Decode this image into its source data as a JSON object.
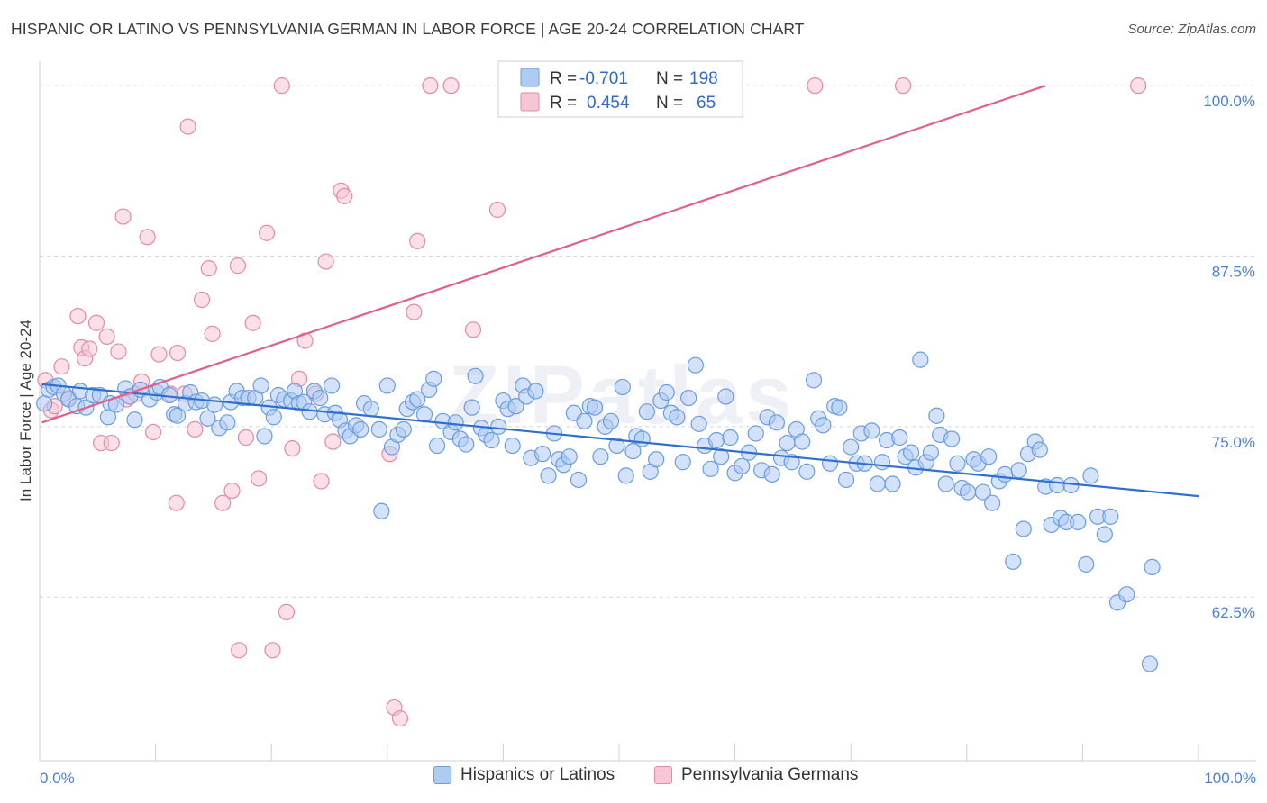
{
  "title": "HISPANIC OR LATINO VS PENNSYLVANIA GERMAN IN LABOR FORCE | AGE 20-24 CORRELATION CHART",
  "source": "Source: ZipAtlas.com",
  "watermark": "ZIPatlas",
  "legend": {
    "rows": [
      {
        "r_label": "R =",
        "r_value": "-0.701",
        "n_label": "N =",
        "n_value": "198"
      },
      {
        "r_label": "R =",
        "r_value": "0.454",
        "n_label": "N =",
        "n_value": "65"
      }
    ]
  },
  "colors": {
    "blue_fill": "#aecbf2",
    "blue_stroke": "#6a9de0",
    "blue_line": "#2f6fd0",
    "pink_fill": "#f7c6d4",
    "pink_stroke": "#e28aa8",
    "pink_line": "#e0608a",
    "tick_text": "#4f7fd0",
    "grid": "#d8d8d8"
  },
  "chart_data": {
    "type": "scatter",
    "ylabel": "In Labor Force | Age 20-24",
    "xlim": [
      0,
      100
    ],
    "ylim": [
      50.5,
      101
    ],
    "x_tick_labels": [
      "0.0%",
      "100.0%"
    ],
    "y_ticks": [
      62.5,
      75.0,
      87.5,
      100.0
    ],
    "y_tick_labels": [
      "62.5%",
      "75.0%",
      "87.5%",
      "100.0%"
    ],
    "grid": "horizontal dashed",
    "series": [
      {
        "name": "Hispanics or Latinos",
        "r": -0.701,
        "n": 198,
        "trend": [
          [
            0.2,
            78.1
          ],
          [
            100,
            69.9
          ]
        ],
        "points": [
          [
            0.4,
            76.7
          ],
          [
            0.8,
            77.7
          ],
          [
            1.2,
            77.9
          ],
          [
            1.6,
            78.0
          ],
          [
            2.1,
            77.4
          ],
          [
            2.5,
            77.0
          ],
          [
            3.2,
            76.5
          ],
          [
            3.5,
            77.6
          ],
          [
            4.0,
            76.4
          ],
          [
            4.6,
            77.3
          ],
          [
            5.2,
            77.3
          ],
          [
            5.9,
            75.7
          ],
          [
            6.1,
            76.7
          ],
          [
            6.6,
            76.6
          ],
          [
            7.4,
            77.8
          ],
          [
            7.8,
            77.2
          ],
          [
            8.2,
            75.5
          ],
          [
            8.7,
            77.7
          ],
          [
            9.5,
            77.0
          ],
          [
            10.1,
            77.5
          ],
          [
            10.4,
            77.9
          ],
          [
            11.2,
            77.3
          ],
          [
            11.6,
            75.9
          ],
          [
            11.9,
            75.8
          ],
          [
            12.6,
            76.7
          ],
          [
            13.0,
            77.5
          ],
          [
            13.5,
            76.8
          ],
          [
            14.0,
            76.9
          ],
          [
            14.5,
            75.6
          ],
          [
            15.1,
            76.6
          ],
          [
            15.5,
            74.9
          ],
          [
            16.2,
            75.3
          ],
          [
            16.5,
            76.8
          ],
          [
            17.0,
            77.6
          ],
          [
            17.5,
            77.1
          ],
          [
            18.0,
            77.1
          ],
          [
            18.6,
            77.1
          ],
          [
            19.1,
            78.0
          ],
          [
            19.4,
            74.3
          ],
          [
            19.8,
            76.4
          ],
          [
            20.2,
            75.7
          ],
          [
            20.6,
            77.3
          ],
          [
            21.1,
            77.0
          ],
          [
            21.7,
            76.9
          ],
          [
            22.0,
            77.6
          ],
          [
            22.4,
            76.7
          ],
          [
            22.8,
            76.8
          ],
          [
            23.3,
            76.1
          ],
          [
            23.7,
            77.6
          ],
          [
            24.2,
            77.1
          ],
          [
            24.6,
            75.9
          ],
          [
            25.2,
            78.0
          ],
          [
            25.5,
            76.0
          ],
          [
            25.9,
            75.5
          ],
          [
            26.4,
            74.7
          ],
          [
            26.8,
            74.3
          ],
          [
            27.3,
            75.1
          ],
          [
            27.7,
            74.8
          ],
          [
            28.0,
            76.7
          ],
          [
            28.6,
            76.3
          ],
          [
            29.3,
            74.8
          ],
          [
            29.5,
            68.8
          ],
          [
            30.0,
            78.0
          ],
          [
            30.4,
            73.5
          ],
          [
            30.9,
            74.4
          ],
          [
            31.4,
            74.8
          ],
          [
            31.7,
            76.3
          ],
          [
            32.2,
            76.8
          ],
          [
            32.6,
            77.0
          ],
          [
            33.2,
            75.9
          ],
          [
            33.6,
            77.7
          ],
          [
            34.0,
            78.5
          ],
          [
            34.3,
            73.6
          ],
          [
            34.8,
            75.4
          ],
          [
            35.5,
            74.6
          ],
          [
            35.9,
            75.3
          ],
          [
            36.3,
            74.1
          ],
          [
            36.8,
            73.7
          ],
          [
            37.3,
            76.4
          ],
          [
            37.6,
            78.7
          ],
          [
            38.1,
            74.9
          ],
          [
            38.5,
            74.4
          ],
          [
            39.0,
            74.0
          ],
          [
            39.6,
            75.0
          ],
          [
            40.0,
            76.9
          ],
          [
            40.4,
            76.3
          ],
          [
            40.8,
            73.6
          ],
          [
            41.1,
            76.5
          ],
          [
            41.7,
            78.0
          ],
          [
            42.0,
            77.2
          ],
          [
            42.4,
            72.7
          ],
          [
            42.8,
            77.6
          ],
          [
            43.4,
            73.0
          ],
          [
            43.9,
            71.4
          ],
          [
            44.4,
            74.5
          ],
          [
            44.8,
            72.6
          ],
          [
            45.2,
            72.2
          ],
          [
            45.7,
            72.8
          ],
          [
            46.1,
            76.0
          ],
          [
            46.5,
            71.1
          ],
          [
            47.0,
            75.4
          ],
          [
            47.5,
            76.5
          ],
          [
            47.9,
            76.4
          ],
          [
            48.4,
            72.8
          ],
          [
            48.8,
            75.0
          ],
          [
            49.3,
            75.4
          ],
          [
            49.8,
            73.6
          ],
          [
            50.3,
            77.9
          ],
          [
            50.6,
            71.4
          ],
          [
            51.2,
            73.2
          ],
          [
            51.5,
            74.3
          ],
          [
            52.0,
            74.1
          ],
          [
            52.4,
            76.1
          ],
          [
            52.7,
            71.7
          ],
          [
            53.2,
            72.6
          ],
          [
            53.6,
            76.9
          ],
          [
            54.1,
            77.5
          ],
          [
            54.5,
            76.0
          ],
          [
            55.0,
            75.7
          ],
          [
            55.5,
            72.4
          ],
          [
            56.0,
            77.1
          ],
          [
            56.6,
            79.5
          ],
          [
            56.9,
            75.2
          ],
          [
            57.4,
            73.6
          ],
          [
            57.9,
            71.9
          ],
          [
            58.4,
            74.0
          ],
          [
            58.8,
            72.8
          ],
          [
            59.2,
            77.2
          ],
          [
            59.6,
            74.2
          ],
          [
            60.0,
            71.6
          ],
          [
            60.6,
            72.1
          ],
          [
            61.2,
            73.1
          ],
          [
            61.8,
            74.5
          ],
          [
            62.3,
            71.8
          ],
          [
            62.8,
            75.7
          ],
          [
            63.2,
            71.5
          ],
          [
            63.6,
            75.3
          ],
          [
            64.0,
            72.7
          ],
          [
            64.5,
            73.8
          ],
          [
            64.9,
            72.4
          ],
          [
            65.3,
            74.8
          ],
          [
            65.8,
            73.9
          ],
          [
            66.2,
            71.7
          ],
          [
            66.8,
            78.4
          ],
          [
            67.2,
            75.6
          ],
          [
            67.6,
            75.1
          ],
          [
            68.2,
            72.3
          ],
          [
            68.6,
            76.5
          ],
          [
            69.0,
            76.4
          ],
          [
            69.6,
            71.1
          ],
          [
            70.0,
            73.5
          ],
          [
            70.5,
            72.3
          ],
          [
            70.9,
            74.5
          ],
          [
            71.2,
            72.3
          ],
          [
            71.8,
            74.7
          ],
          [
            72.3,
            70.8
          ],
          [
            72.7,
            72.4
          ],
          [
            73.1,
            74.0
          ],
          [
            73.6,
            70.8
          ],
          [
            74.2,
            74.2
          ],
          [
            74.7,
            72.8
          ],
          [
            75.2,
            73.1
          ],
          [
            75.6,
            72.0
          ],
          [
            76.0,
            79.9
          ],
          [
            76.5,
            72.4
          ],
          [
            76.9,
            73.1
          ],
          [
            77.4,
            75.8
          ],
          [
            77.7,
            74.4
          ],
          [
            78.2,
            70.8
          ],
          [
            78.7,
            74.1
          ],
          [
            79.2,
            72.3
          ],
          [
            79.6,
            70.5
          ],
          [
            80.1,
            70.2
          ],
          [
            80.6,
            72.6
          ],
          [
            81.0,
            72.3
          ],
          [
            81.4,
            70.2
          ],
          [
            81.9,
            72.8
          ],
          [
            82.2,
            69.4
          ],
          [
            82.8,
            71.0
          ],
          [
            83.3,
            71.5
          ],
          [
            84.0,
            65.1
          ],
          [
            84.5,
            71.8
          ],
          [
            84.9,
            67.5
          ],
          [
            85.3,
            73.0
          ],
          [
            85.9,
            73.9
          ],
          [
            86.3,
            73.3
          ],
          [
            86.8,
            70.6
          ],
          [
            87.3,
            67.8
          ],
          [
            87.8,
            70.7
          ],
          [
            88.1,
            68.3
          ],
          [
            88.6,
            68.0
          ],
          [
            89.0,
            70.7
          ],
          [
            89.6,
            68.0
          ],
          [
            90.3,
            64.9
          ],
          [
            90.7,
            71.4
          ],
          [
            91.3,
            68.4
          ],
          [
            91.9,
            67.1
          ],
          [
            92.4,
            68.4
          ],
          [
            93.0,
            62.1
          ],
          [
            93.8,
            62.7
          ],
          [
            95.8,
            57.6
          ],
          [
            96.0,
            64.7
          ]
        ]
      },
      {
        "name": "Pennsylvania Germans",
        "r": 0.454,
        "n": 65,
        "trend": [
          [
            0.2,
            75.3
          ],
          [
            86.8,
            100
          ]
        ],
        "points": [
          [
            0.5,
            78.4
          ],
          [
            1.0,
            76.2
          ],
          [
            1.3,
            76.5
          ],
          [
            1.9,
            79.4
          ],
          [
            2.5,
            77.1
          ],
          [
            3.3,
            83.1
          ],
          [
            3.6,
            80.8
          ],
          [
            3.9,
            80.0
          ],
          [
            4.3,
            80.7
          ],
          [
            4.9,
            82.6
          ],
          [
            5.3,
            73.8
          ],
          [
            5.8,
            81.6
          ],
          [
            6.2,
            73.8
          ],
          [
            6.8,
            80.5
          ],
          [
            7.2,
            90.4
          ],
          [
            7.5,
            77.0
          ],
          [
            8.3,
            77.4
          ],
          [
            8.8,
            78.3
          ],
          [
            9.3,
            88.9
          ],
          [
            9.8,
            74.6
          ],
          [
            10.3,
            80.3
          ],
          [
            11.3,
            77.4
          ],
          [
            11.8,
            69.4
          ],
          [
            11.9,
            80.4
          ],
          [
            12.5,
            77.4
          ],
          [
            12.8,
            97.0
          ],
          [
            13.4,
            74.8
          ],
          [
            14.0,
            84.3
          ],
          [
            14.6,
            86.6
          ],
          [
            14.9,
            81.8
          ],
          [
            15.8,
            69.4
          ],
          [
            16.6,
            70.3
          ],
          [
            17.2,
            58.6
          ],
          [
            17.1,
            86.8
          ],
          [
            17.8,
            74.2
          ],
          [
            18.4,
            82.6
          ],
          [
            18.9,
            71.2
          ],
          [
            19.6,
            89.2
          ],
          [
            20.1,
            58.6
          ],
          [
            20.9,
            100
          ],
          [
            21.3,
            61.4
          ],
          [
            21.8,
            73.4
          ],
          [
            22.4,
            78.5
          ],
          [
            22.9,
            81.3
          ],
          [
            23.8,
            77.4
          ],
          [
            24.3,
            71.0
          ],
          [
            24.7,
            87.1
          ],
          [
            25.3,
            73.9
          ],
          [
            26.0,
            92.3
          ],
          [
            26.3,
            91.9
          ],
          [
            30.2,
            73.0
          ],
          [
            30.6,
            54.4
          ],
          [
            31.1,
            53.6
          ],
          [
            32.3,
            83.4
          ],
          [
            32.6,
            88.6
          ],
          [
            33.7,
            100
          ],
          [
            35.5,
            100
          ],
          [
            37.4,
            82.1
          ],
          [
            39.5,
            90.9
          ],
          [
            43.2,
            100
          ],
          [
            48.2,
            100
          ],
          [
            48.6,
            100
          ],
          [
            66.9,
            100
          ],
          [
            74.5,
            100
          ],
          [
            94.8,
            100
          ]
        ]
      }
    ]
  }
}
